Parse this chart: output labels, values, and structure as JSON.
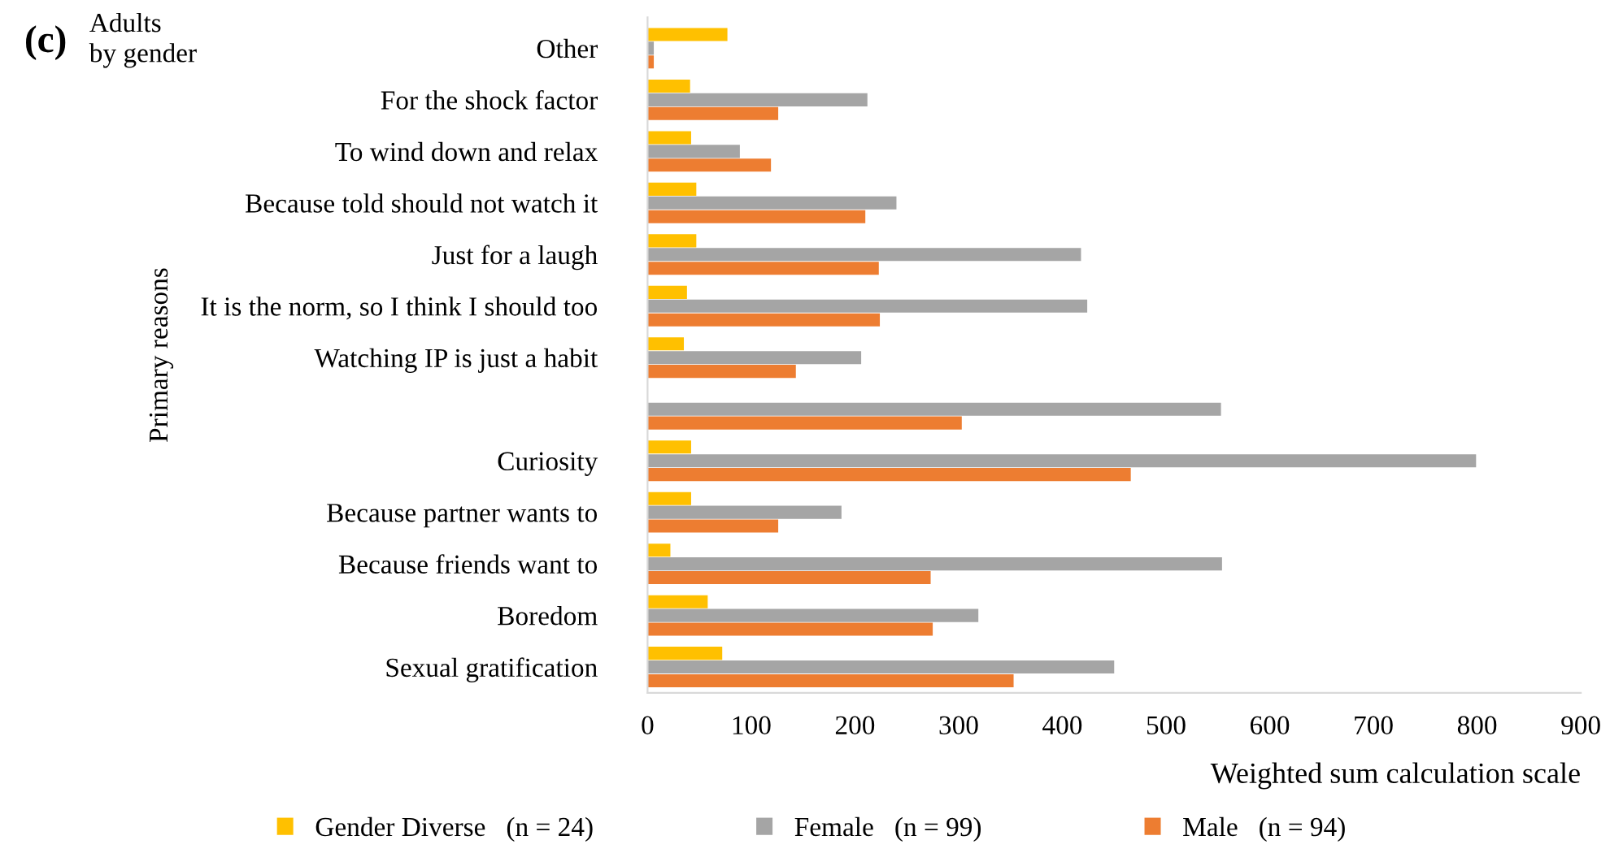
{
  "chart_data": {
    "type": "bar",
    "orientation": "horizontal",
    "title": "(c)",
    "subtitle": "Adults\nby gender",
    "xlabel": "Weighted sum calculation scale",
    "ylabel": "Primary reasons",
    "categories": [
      "Other",
      "For the shock factor",
      "To wind down and relax",
      "Because told should not watch it",
      "Just for a laugh",
      "It is the norm, so I think I should too",
      "Watching IP is just a habit",
      null,
      "Curiosity",
      "Because partner wants to",
      "Because friends want to",
      "Boredom",
      "Sexual gratification"
    ],
    "series": [
      {
        "name": "Gender Diverse   (n = 24)",
        "color": "#ffc000",
        "values": [
          77,
          41,
          42,
          47,
          47,
          38,
          35,
          null,
          42,
          42,
          22,
          58,
          72
        ]
      },
      {
        "name": "Female   (n = 99)",
        "color": "#a5a5a5",
        "values": [
          6,
          212,
          89,
          240,
          418,
          424,
          206,
          553,
          799,
          187,
          554,
          319,
          450
        ]
      },
      {
        "name": "Male   (n = 94)",
        "color": "#ed7d31",
        "values": [
          6,
          126,
          119,
          210,
          223,
          224,
          143,
          303,
          466,
          126,
          273,
          275,
          353
        ]
      }
    ],
    "xlim": [
      0,
      900
    ],
    "xticks": [
      0,
      100,
      200,
      300,
      400,
      500,
      600,
      700,
      800,
      900
    ],
    "grid": false,
    "legend": "bottom"
  }
}
